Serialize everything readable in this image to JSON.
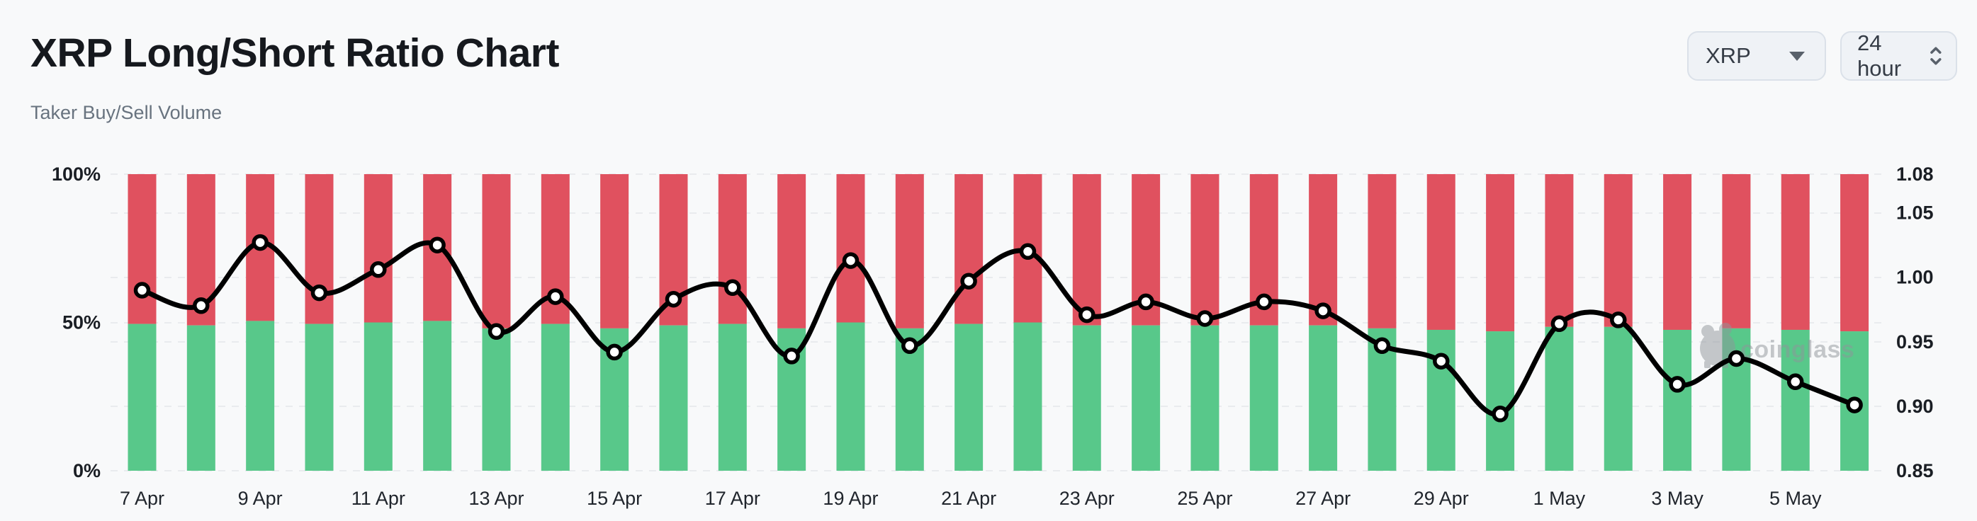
{
  "page": {
    "background": "#f8f9fa"
  },
  "header": {
    "title": "XRP Long/Short Ratio Chart",
    "subtitle": "Taker Buy/Sell Volume"
  },
  "controls": {
    "symbol_select": {
      "value": "XRP",
      "icon": "chevron-down"
    },
    "interval_select": {
      "value": "24 hour",
      "icon": "up-down-chevrons"
    }
  },
  "watermark": {
    "text": "coinglass",
    "icon": "coinglass-pig",
    "color": "#8f959a"
  },
  "chart_data": {
    "type": "bar",
    "subtype": "stacked-percent-bars-with-smooth-line-overlay",
    "title": "XRP Long/Short Ratio Chart",
    "categories": [
      "7 Apr",
      "8 Apr",
      "9 Apr",
      "10 Apr",
      "11 Apr",
      "12 Apr",
      "13 Apr",
      "14 Apr",
      "15 Apr",
      "16 Apr",
      "17 Apr",
      "18 Apr",
      "19 Apr",
      "20 Apr",
      "21 Apr",
      "22 Apr",
      "23 Apr",
      "24 Apr",
      "25 Apr",
      "26 Apr",
      "27 Apr",
      "28 Apr",
      "29 Apr",
      "30 Apr",
      "1 May",
      "2 May",
      "3 May",
      "4 May",
      "5 May",
      "6 May"
    ],
    "x_tick_labels": [
      "7 Apr",
      "9 Apr",
      "11 Apr",
      "13 Apr",
      "15 Apr",
      "17 Apr",
      "19 Apr",
      "21 Apr",
      "23 Apr",
      "25 Apr",
      "27 Apr",
      "29 Apr",
      "1 May",
      "3 May",
      "5 May"
    ],
    "series": [
      {
        "name": "Taker buy volume %",
        "type": "bar",
        "stack": true,
        "axis": "left",
        "color": "#58c88a",
        "values": [
          49.5,
          49,
          50.5,
          49.5,
          50,
          50.5,
          48,
          49.5,
          48,
          49,
          49.5,
          48,
          50,
          48,
          49.5,
          50,
          49,
          49,
          49,
          49,
          49,
          48,
          47.5,
          47,
          48.5,
          48.5,
          47.5,
          48,
          47.5,
          47
        ]
      },
      {
        "name": "Taker sell volume %",
        "type": "bar",
        "stack": true,
        "axis": "left",
        "color": "#e0515f",
        "values": [
          50.5,
          51,
          49.5,
          50.5,
          50,
          49.5,
          52,
          50.5,
          52,
          51,
          50.5,
          52,
          50,
          52,
          50.5,
          50,
          51,
          51,
          51,
          51,
          51,
          52,
          52.5,
          53,
          51.5,
          51.5,
          52.5,
          52,
          52.5,
          53
        ]
      },
      {
        "name": "Long/Short ratio",
        "type": "line",
        "smooth": true,
        "axis": "right",
        "color": "#000000",
        "marker": {
          "fill": "#ffffff",
          "stroke": "#000000"
        },
        "values": [
          0.99,
          0.978,
          1.027,
          0.988,
          1.006,
          1.025,
          0.958,
          0.985,
          0.942,
          0.983,
          0.992,
          0.939,
          1.013,
          0.947,
          0.997,
          1.02,
          0.971,
          0.981,
          0.968,
          0.981,
          0.974,
          0.947,
          0.935,
          0.894,
          0.964,
          0.967,
          0.917,
          0.937,
          0.919,
          0.901
        ]
      }
    ],
    "left_axis": {
      "ticks": [
        "0%",
        "50%",
        "100%"
      ],
      "range": [
        0,
        100
      ]
    },
    "right_axis": {
      "ticks": [
        "0.85",
        "0.90",
        "0.95",
        "1.00",
        "1.05",
        "1.08"
      ],
      "range": [
        0.85,
        1.08
      ]
    },
    "grid": {
      "horizontal": true,
      "vertical": false,
      "style": "dashed",
      "color": "#e9ebee"
    },
    "legend_position": "none"
  }
}
